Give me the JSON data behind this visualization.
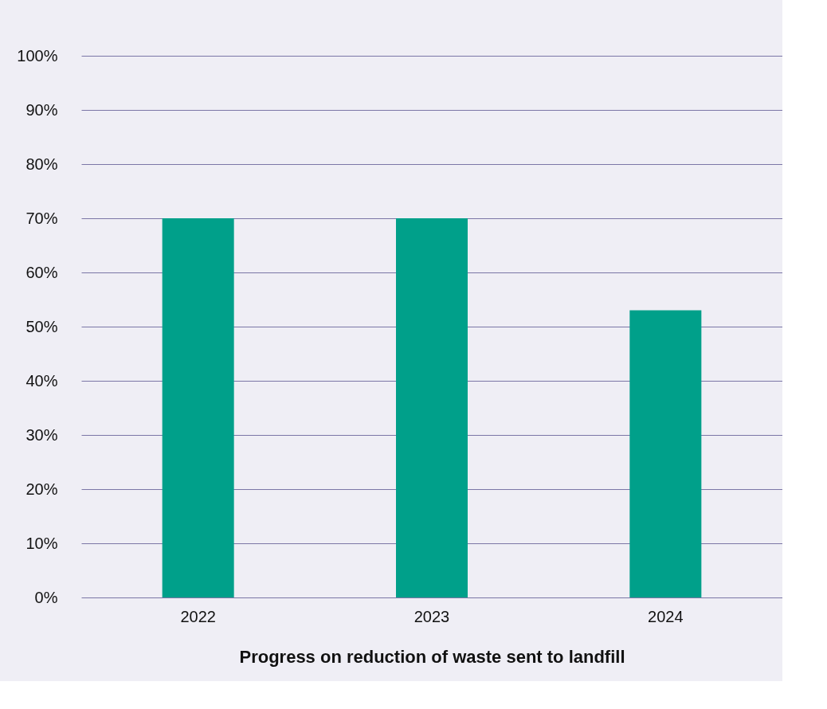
{
  "chart_data": {
    "type": "bar",
    "xlabel": "Progress on reduction of waste sent to landfill",
    "categories": [
      "2022",
      "2023",
      "2024"
    ],
    "values": [
      70,
      70,
      53
    ],
    "color": "#00a08a",
    "ylim": [
      0,
      100
    ],
    "yticks": [
      {
        "value": 0,
        "label": "0%"
      },
      {
        "value": 10,
        "label": "10%"
      },
      {
        "value": 20,
        "label": "20%"
      },
      {
        "value": 30,
        "label": "30%"
      },
      {
        "value": 40,
        "label": "40%"
      },
      {
        "value": 50,
        "label": "50%"
      },
      {
        "value": 60,
        "label": "60%"
      },
      {
        "value": 70,
        "label": "70%"
      },
      {
        "value": 80,
        "label": "80%"
      },
      {
        "value": 90,
        "label": "90%"
      },
      {
        "value": 100,
        "label": "100%"
      }
    ],
    "grid": "y"
  }
}
